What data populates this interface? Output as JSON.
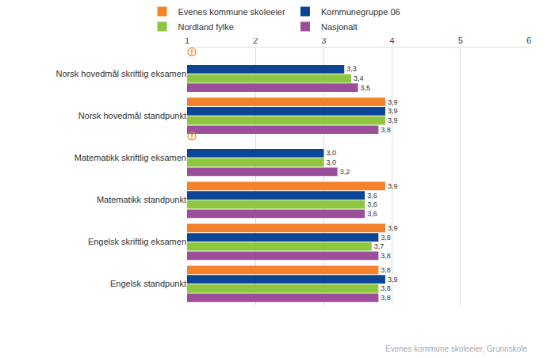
{
  "chart_data": {
    "type": "bar",
    "orientation": "horizontal",
    "categories": [
      "Norsk hovedmål skriftlig eksamen",
      "Norsk hovedmål standpunkt",
      "Matematikk skriftlig eksamen",
      "Matematikk standpunkt",
      "Engelsk skriftlig eksamen",
      "Engelsk standpunkt"
    ],
    "series": [
      {
        "name": "Evenes kommune skoleeier",
        "color": "#f5822a",
        "values": [
          null,
          3.9,
          null,
          3.9,
          3.9,
          3.8
        ],
        "value_labels": [
          null,
          "3,9",
          null,
          "3,9",
          "3,9",
          "3,8"
        ]
      },
      {
        "name": "Kommunegruppe 06",
        "color": "#0d4596",
        "values": [
          3.3,
          3.9,
          3.0,
          3.6,
          3.8,
          3.9
        ],
        "value_labels": [
          "3,3",
          "3,9",
          "3,0",
          "3,6",
          "3,8",
          "3,9"
        ]
      },
      {
        "name": "Nordland fylke",
        "color": "#8dc63f",
        "values": [
          3.4,
          3.9,
          3.0,
          3.6,
          3.7,
          3.8
        ],
        "value_labels": [
          "3,4",
          "3,9",
          "3,0",
          "3,6",
          "3,7",
          "3,8"
        ]
      },
      {
        "name": "Nasjonalt",
        "color": "#9b4f9b",
        "values": [
          3.5,
          3.8,
          3.2,
          3.6,
          3.8,
          3.8
        ],
        "value_labels": [
          "3,5",
          "3,8",
          "3,2",
          "3,6",
          "3,8",
          "3,8"
        ]
      }
    ],
    "xlim": [
      1,
      6
    ],
    "xticks": [
      1,
      2,
      3,
      4,
      5,
      6
    ],
    "grid": true,
    "legend": "top",
    "data_labels": true,
    "annotations": [
      "Evenes kommune skoleeier, Grunnskole"
    ]
  }
}
